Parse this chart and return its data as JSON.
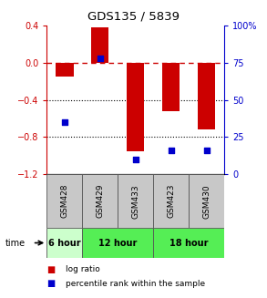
{
  "title": "GDS135 / 5839",
  "samples": [
    "GSM428",
    "GSM429",
    "GSM433",
    "GSM423",
    "GSM430"
  ],
  "log_ratios": [
    -0.15,
    0.38,
    -0.95,
    -0.52,
    -0.72
  ],
  "percentile_ranks": [
    35,
    78,
    10,
    16,
    16
  ],
  "ylim_left": [
    -1.2,
    0.4
  ],
  "ylim_right": [
    0,
    100
  ],
  "yticks_left": [
    0.4,
    0.0,
    -0.4,
    -0.8,
    -1.2
  ],
  "yticks_right": [
    100,
    75,
    50,
    25,
    0
  ],
  "bar_color": "#cc0000",
  "dot_color": "#0000cc",
  "sample_bg_color": "#c8c8c8",
  "bg_color": "#ffffff",
  "plot_bg_color": "#ffffff",
  "zero_line_color": "#cc0000",
  "grid_color": "#000000",
  "bar_width": 0.5,
  "time_group_6h_color": "#ccffcc",
  "time_group_12h_color": "#55ee55",
  "time_group_18h_color": "#55ee55",
  "time_groups": [
    {
      "start": 0,
      "end": 1,
      "label": "6 hour",
      "color": "#ccffcc"
    },
    {
      "start": 1,
      "end": 3,
      "label": "12 hour",
      "color": "#55ee55"
    },
    {
      "start": 3,
      "end": 5,
      "label": "18 hour",
      "color": "#55ee55"
    }
  ]
}
